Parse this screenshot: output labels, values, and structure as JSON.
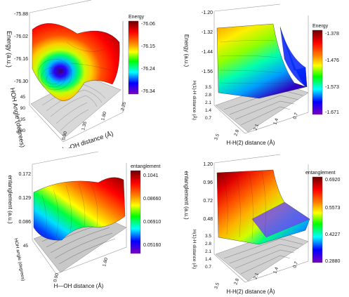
{
  "chart_data": [
    {
      "type": "surface3d",
      "xlabel": "H—OH distance (Å)",
      "ylabel": "HOH Angle (degrees)",
      "zlabel": "Energy (a.u.)",
      "x_ticks": [
        "0.90",
        "1.35",
        "1.80",
        "2.25"
      ],
      "y_ticks": [
        "45",
        "90",
        "135",
        "180"
      ],
      "z_ticks": [
        "-75.88",
        "-76.02",
        "-76.16",
        "-76.30"
      ],
      "colorbar": {
        "title": "Energy",
        "ticks": [
          "-76.06",
          "-76.15",
          "-76.24",
          "-76.34"
        ],
        "range": [
          -76.34,
          -76.06
        ]
      },
      "zlim": [
        -76.34,
        -75.88
      ]
    },
    {
      "type": "surface3d",
      "xlabel": "H-H(2) distance (Å)",
      "ylabel": "H(1)-H distance (Å)",
      "zlabel": "Energy (a.u.)",
      "x_ticks": [
        "3.5",
        "2.8",
        "2.1",
        "1.4",
        "0.7"
      ],
      "y_ticks": [
        "3.5",
        "2.8",
        "2.1",
        "1.4",
        "0.7"
      ],
      "z_ticks": [
        "-1.20",
        "-1.32",
        "-1.44",
        "-1.56"
      ],
      "colorbar": {
        "title": "Energy",
        "ticks": [
          "-1.378",
          "-1.476",
          "-1.573",
          "-1.671"
        ],
        "range": [
          -1.671,
          -1.378
        ]
      },
      "zlim": [
        -1.671,
        -1.2
      ]
    },
    {
      "type": "surface3d",
      "xlabel": "H—OH distance (Å)",
      "ylabel": "HOH angle (degrees)",
      "zlabel": "entanglement (a.u.)",
      "x_ticks": [
        "0.90",
        "1.80"
      ],
      "y_ticks": [
        "45"
      ],
      "z_ticks": [
        "0.172",
        "0.129",
        "0.086"
      ],
      "colorbar": {
        "title": "entanglement",
        "ticks": [
          "0.1041",
          "0.08660",
          "0.06910",
          "0.05160"
        ],
        "range": [
          0.0516,
          0.1041
        ]
      },
      "zlim": [
        0.0516,
        0.172
      ]
    },
    {
      "type": "surface3d",
      "xlabel": "H-H(2) distance (Å)",
      "ylabel": "H(1)-H distance (Å)",
      "zlabel": "entanglement (a.u.)",
      "x_ticks": [
        "3.5",
        "2.8",
        "2.1",
        "1.4",
        "0.7"
      ],
      "y_ticks": [
        "3.5",
        "2.8",
        "2.1",
        "1.4",
        "0.7"
      ],
      "z_ticks": [
        "1.20",
        "0.96",
        "0.72",
        "0.48"
      ],
      "colorbar": {
        "title": "entanglement",
        "ticks": [
          "0.6920",
          "0.5573",
          "0.4227",
          "0.2880"
        ],
        "range": [
          0.288,
          0.692
        ]
      },
      "zlim": [
        0.288,
        1.2
      ]
    }
  ]
}
